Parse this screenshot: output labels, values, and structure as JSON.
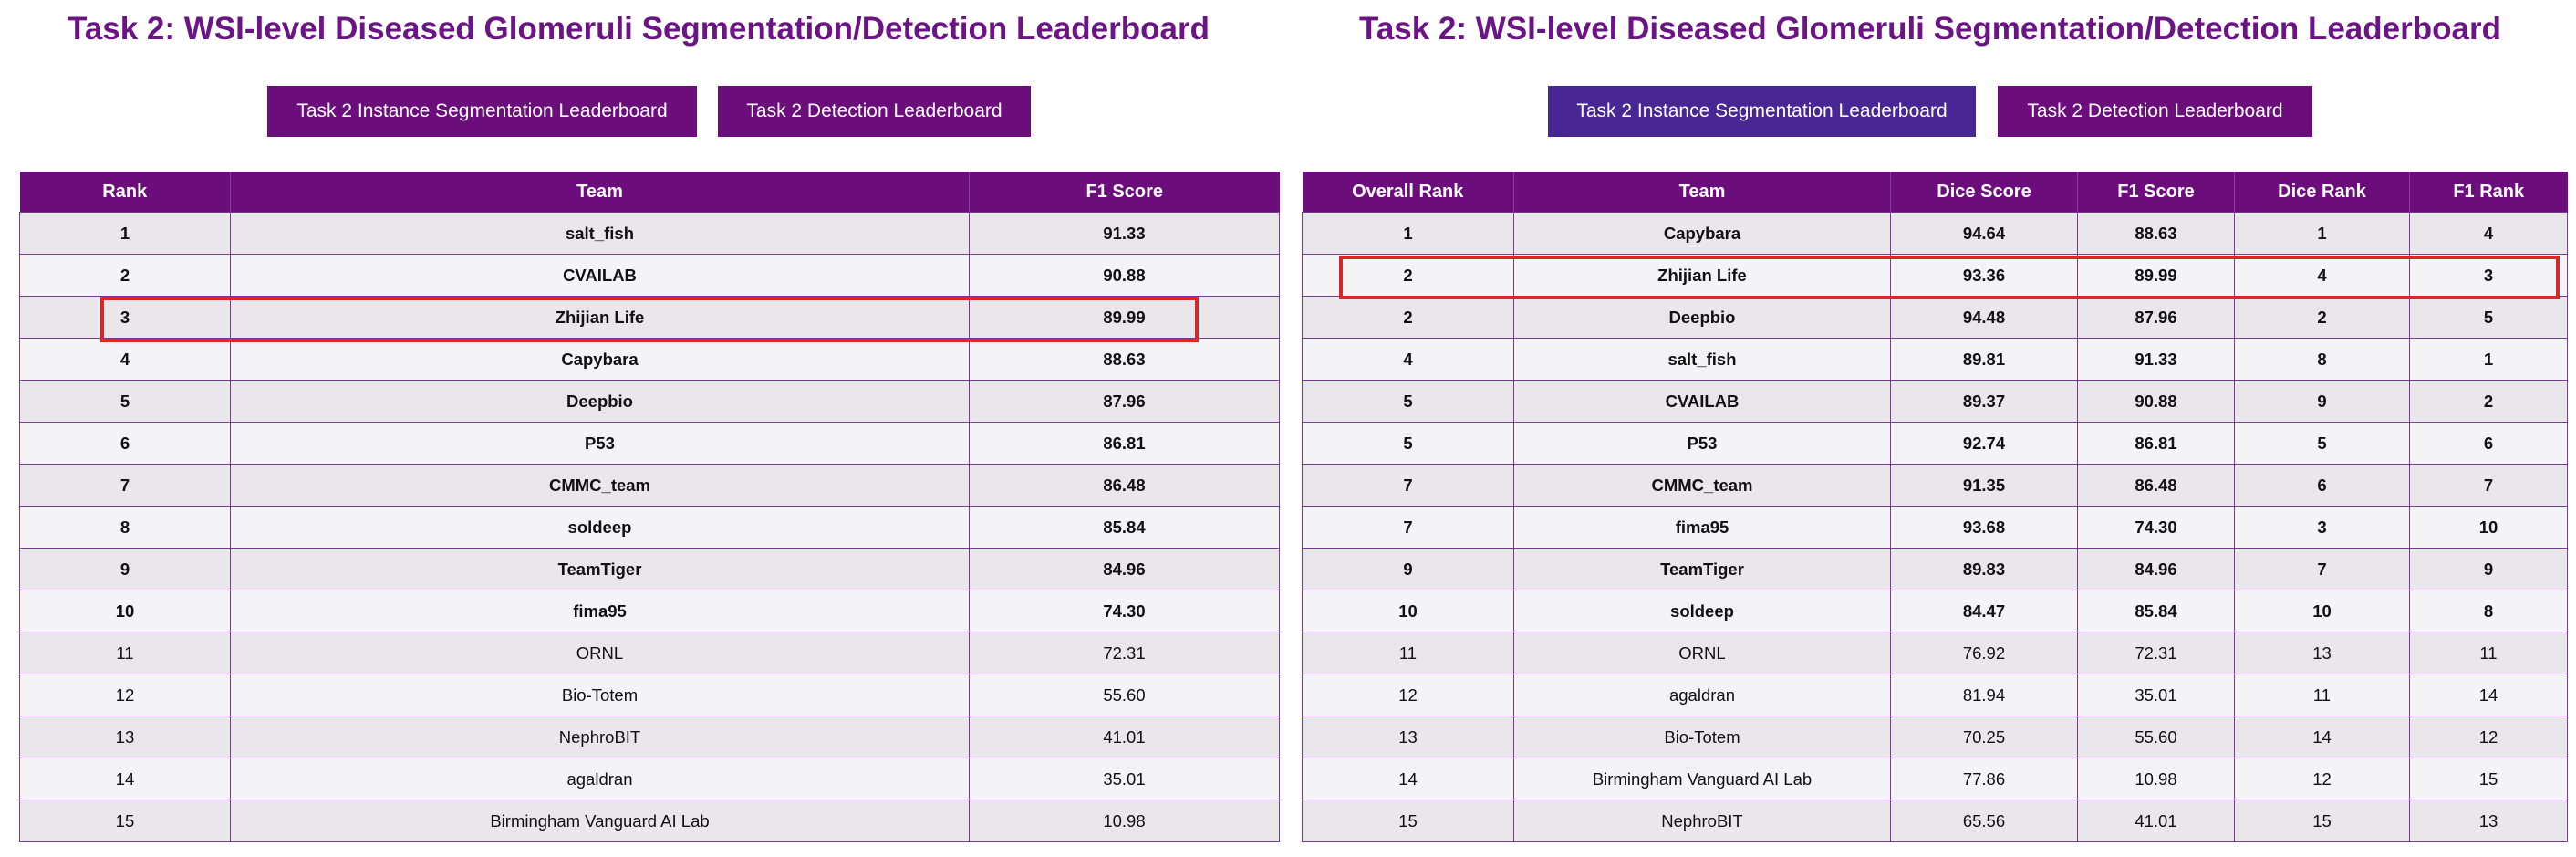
{
  "colors": {
    "title": "#6b1585",
    "header_bg": "#6b0e7c",
    "button_bg": "#6b0e7c",
    "button_active_bg": "#482694",
    "row_odd": "#e9e7ea",
    "row_even": "#f4f3f5",
    "highlight": "#d9262b"
  },
  "left": {
    "title": "Task 2: WSI-level Diseased Glomeruli Segmentation/Detection Leaderboard",
    "buttons": {
      "instance_seg": "Task 2 Instance Segmentation Leaderboard",
      "detection": "Task 2 Detection Leaderboard"
    },
    "columns": [
      "Rank",
      "Team",
      "F1 Score"
    ],
    "rows": [
      [
        "1",
        "salt_fish",
        "91.33"
      ],
      [
        "2",
        "CVAILAB",
        "90.88"
      ],
      [
        "3",
        "Zhijian Life",
        "89.99"
      ],
      [
        "4",
        "Capybara",
        "88.63"
      ],
      [
        "5",
        "Deepbio",
        "87.96"
      ],
      [
        "6",
        "P53",
        "86.81"
      ],
      [
        "7",
        "CMMC_team",
        "86.48"
      ],
      [
        "8",
        "soldeep",
        "85.84"
      ],
      [
        "9",
        "TeamTiger",
        "84.96"
      ],
      [
        "10",
        "fima95",
        "74.30"
      ],
      [
        "11",
        "ORNL",
        "72.31"
      ],
      [
        "12",
        "Bio-Totem",
        "55.60"
      ],
      [
        "13",
        "NephroBIT",
        "41.01"
      ],
      [
        "14",
        "agaldran",
        "35.01"
      ],
      [
        "15",
        "Birmingham Vanguard AI Lab",
        "10.98"
      ]
    ]
  },
  "right": {
    "title": "Task 2: WSI-level Diseased Glomeruli Segmentation/Detection Leaderboard",
    "buttons": {
      "instance_seg": "Task 2 Instance Segmentation Leaderboard",
      "detection": "Task 2 Detection Leaderboard"
    },
    "columns": [
      "Overall Rank",
      "Team",
      "Dice Score",
      "F1 Score",
      "Dice Rank",
      "F1 Rank"
    ],
    "rows": [
      [
        "1",
        "Capybara",
        "94.64",
        "88.63",
        "1",
        "4"
      ],
      [
        "2",
        "Zhijian Life",
        "93.36",
        "89.99",
        "4",
        "3"
      ],
      [
        "2",
        "Deepbio",
        "94.48",
        "87.96",
        "2",
        "5"
      ],
      [
        "4",
        "salt_fish",
        "89.81",
        "91.33",
        "8",
        "1"
      ],
      [
        "5",
        "CVAILAB",
        "89.37",
        "90.88",
        "9",
        "2"
      ],
      [
        "5",
        "P53",
        "92.74",
        "86.81",
        "5",
        "6"
      ],
      [
        "7",
        "CMMC_team",
        "91.35",
        "86.48",
        "6",
        "7"
      ],
      [
        "7",
        "fima95",
        "93.68",
        "74.30",
        "3",
        "10"
      ],
      [
        "9",
        "TeamTiger",
        "89.83",
        "84.96",
        "7",
        "9"
      ],
      [
        "10",
        "soldeep",
        "84.47",
        "85.84",
        "10",
        "8"
      ],
      [
        "11",
        "ORNL",
        "76.92",
        "72.31",
        "13",
        "11"
      ],
      [
        "12",
        "agaldran",
        "81.94",
        "35.01",
        "11",
        "14"
      ],
      [
        "13",
        "Bio-Totem",
        "70.25",
        "55.60",
        "14",
        "12"
      ],
      [
        "14",
        "Birmingham Vanguard AI Lab",
        "77.86",
        "10.98",
        "12",
        "15"
      ],
      [
        "15",
        "NephroBIT",
        "65.56",
        "41.01",
        "15",
        "13"
      ]
    ]
  }
}
